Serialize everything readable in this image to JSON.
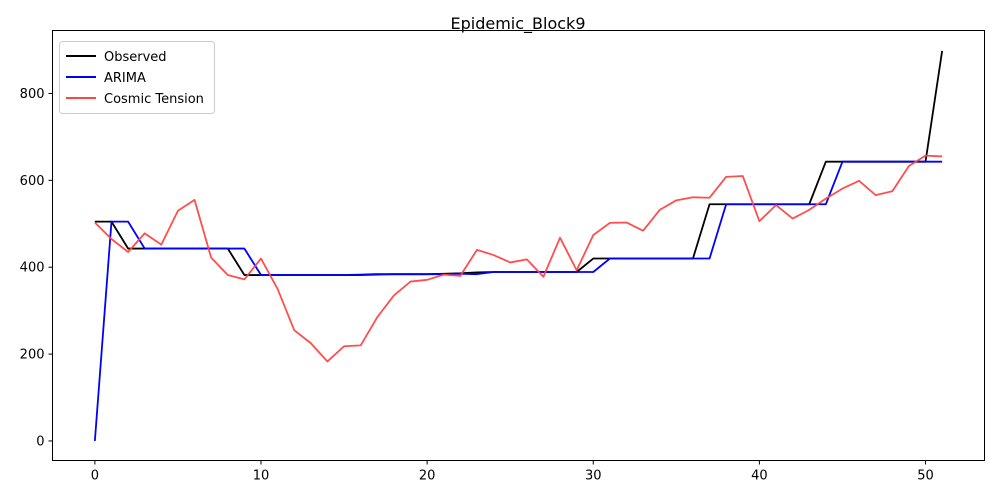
{
  "chart_data": {
    "type": "line",
    "title": "Epidemic_Block9",
    "xlabel": "",
    "ylabel": "",
    "xlim": [
      -2.55,
      53.55
    ],
    "ylim": [
      -45,
      945
    ],
    "xticks": [
      0,
      10,
      20,
      30,
      40,
      50
    ],
    "yticks": [
      0,
      200,
      400,
      600,
      800
    ],
    "grid": false,
    "legend_position": "top-left",
    "x": [
      0,
      1,
      2,
      3,
      4,
      5,
      6,
      7,
      8,
      9,
      10,
      11,
      12,
      13,
      14,
      15,
      16,
      17,
      18,
      19,
      20,
      21,
      22,
      23,
      24,
      25,
      26,
      27,
      28,
      29,
      30,
      31,
      32,
      33,
      34,
      35,
      36,
      37,
      38,
      39,
      40,
      41,
      42,
      43,
      44,
      45,
      46,
      47,
      48,
      49,
      50,
      51
    ],
    "series": [
      {
        "name": "Observed",
        "color": "#000000",
        "values": [
          505,
          505,
          443,
          443,
          443,
          443,
          443,
          443,
          443,
          382,
          382,
          382,
          382,
          382,
          382,
          382,
          383,
          384,
          384,
          384,
          384,
          385,
          386,
          388,
          389,
          389,
          389,
          389,
          389,
          389,
          420,
          420,
          420,
          420,
          420,
          420,
          420,
          545,
          545,
          545,
          545,
          545,
          545,
          545,
          643,
          643,
          643,
          643,
          643,
          643,
          643,
          898
        ]
      },
      {
        "name": "ARIMA",
        "color": "#0000ff",
        "values": [
          0,
          505,
          505,
          443,
          443,
          443,
          443,
          443,
          443,
          443,
          382,
          382,
          382,
          382,
          382,
          382,
          382,
          383,
          384,
          384,
          384,
          384,
          385,
          384,
          389,
          389,
          389,
          389,
          389,
          389,
          389,
          420,
          420,
          420,
          420,
          420,
          420,
          420,
          545,
          545,
          545,
          545,
          545,
          545,
          545,
          643,
          643,
          643,
          643,
          643,
          643,
          643
        ]
      },
      {
        "name": "Cosmic Tension",
        "color": "#ff4444",
        "values": [
          503,
          465,
          435,
          478,
          452,
          530,
          555,
          422,
          382,
          372,
          420,
          350,
          255,
          225,
          183,
          218,
          220,
          285,
          335,
          367,
          371,
          383,
          380,
          440,
          428,
          411,
          418,
          378,
          468,
          393,
          474,
          502,
          503,
          484,
          532,
          554,
          561,
          560,
          608,
          610,
          506,
          543,
          512,
          532,
          558,
          581,
          599,
          566,
          575,
          633,
          657,
          655
        ]
      }
    ]
  }
}
